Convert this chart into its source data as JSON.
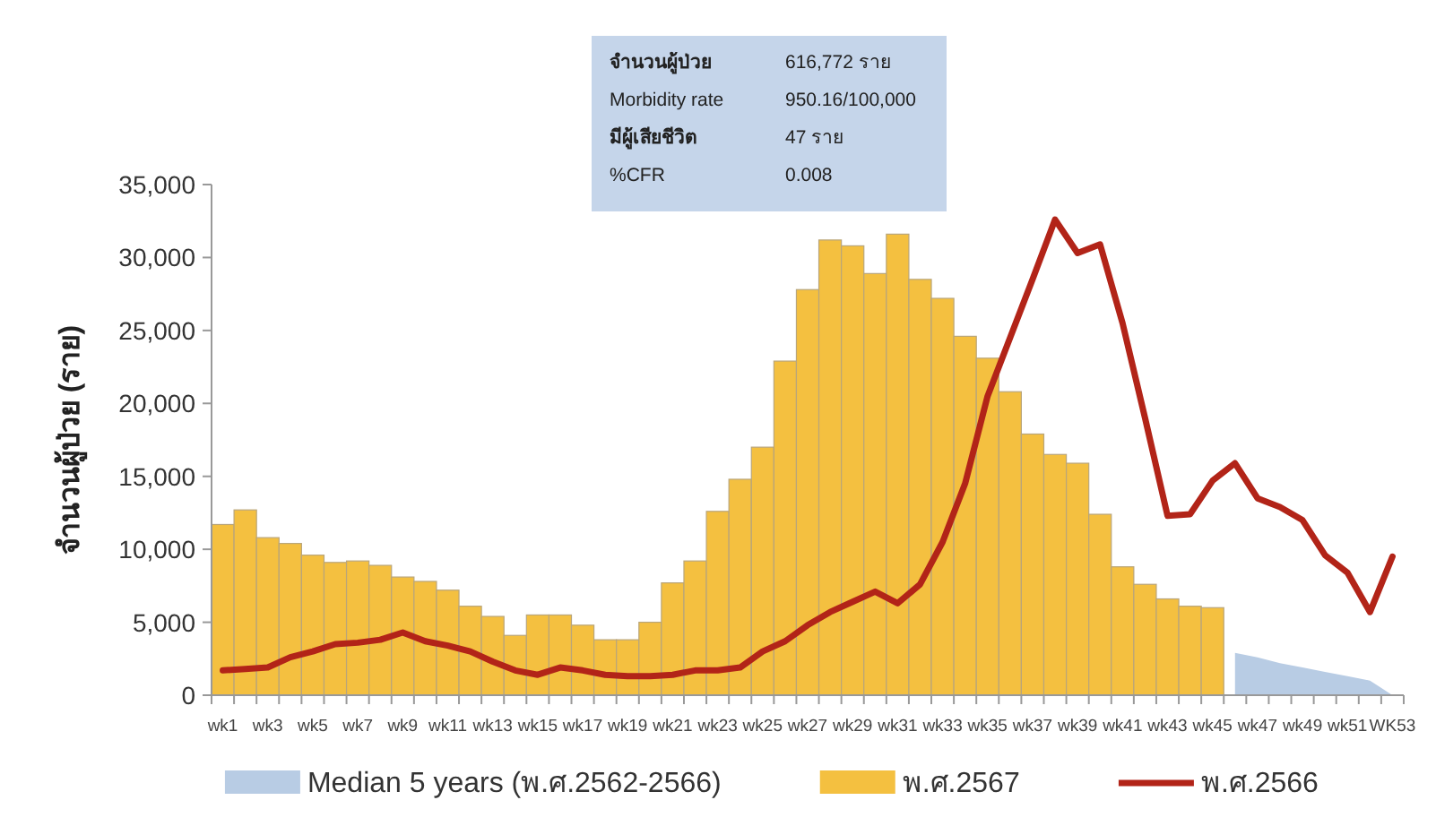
{
  "chart_data": {
    "type": "bar",
    "ylabel": "จำนวนผู้ป่วย (ราย)",
    "categories": [
      "wk1",
      null,
      "wk3",
      null,
      "wk5",
      null,
      "wk7",
      null,
      "wk9",
      null,
      "wk11",
      null,
      "wk13",
      null,
      "wk15",
      null,
      "wk17",
      null,
      "wk19",
      null,
      "wk21",
      null,
      "wk23",
      null,
      "wk25",
      null,
      "wk27",
      null,
      "wk29",
      null,
      "wk31",
      null,
      "wk33",
      null,
      "wk35",
      null,
      "wk37",
      null,
      "wk39",
      null,
      "wk41",
      null,
      "wk43",
      null,
      "wk45",
      null,
      "wk47",
      null,
      "wk49",
      null,
      "wk51",
      null,
      "WK53"
    ],
    "series": [
      {
        "name": "Median 5 years (พ.ศ.2562-2566)",
        "type": "area",
        "color": "#b8cce4",
        "values": [
          null,
          null,
          null,
          null,
          null,
          null,
          null,
          null,
          null,
          null,
          null,
          null,
          null,
          null,
          null,
          null,
          null,
          null,
          null,
          null,
          null,
          null,
          null,
          null,
          null,
          null,
          null,
          null,
          null,
          null,
          null,
          null,
          null,
          null,
          null,
          null,
          null,
          null,
          null,
          null,
          null,
          null,
          null,
          null,
          null,
          2900,
          2600,
          2200,
          1900,
          1600,
          1300,
          1000,
          0
        ]
      },
      {
        "name": "พ.ศ.2567",
        "color": "#f4c040",
        "values": [
          11700,
          12700,
          10800,
          10400,
          9600,
          9100,
          9200,
          8900,
          8100,
          7800,
          7200,
          6100,
          5400,
          4100,
          5500,
          5500,
          4800,
          3800,
          3800,
          5000,
          7700,
          9200,
          12600,
          14800,
          17000,
          22900,
          27800,
          31200,
          30800,
          28900,
          31600,
          28500,
          27200,
          24600,
          23100,
          20800,
          17900,
          16500,
          15900,
          12400,
          8800,
          7600,
          6600,
          6100,
          6000,
          null,
          null,
          null,
          null,
          null,
          null,
          null,
          null
        ]
      },
      {
        "name": "พ.ศ.2566",
        "type": "line",
        "color": "#b22418",
        "values": [
          1700,
          1800,
          1900,
          2600,
          3000,
          3500,
          3600,
          3800,
          4300,
          3700,
          3400,
          3000,
          2300,
          1700,
          1400,
          1900,
          1700,
          1400,
          1300,
          1300,
          1400,
          1700,
          1700,
          1900,
          3000,
          3700,
          4800,
          5700,
          6400,
          7100,
          6300,
          7600,
          10500,
          14500,
          20500,
          24500,
          28500,
          32600,
          30300,
          30900,
          25500,
          19000,
          12300,
          12400,
          14700,
          15900,
          13500,
          12900,
          12000,
          9600,
          8400,
          5700,
          9500
        ]
      }
    ],
    "ylim": [
      0,
      35000
    ],
    "yticks": [
      {
        "value": 0,
        "label": "0"
      },
      {
        "value": 5000,
        "label": "5,000"
      },
      {
        "value": 10000,
        "label": "10,000"
      },
      {
        "value": 15000,
        "label": "15,000"
      },
      {
        "value": 20000,
        "label": "20,000"
      },
      {
        "value": 25000,
        "label": "25,000"
      },
      {
        "value": 30000,
        "label": "30,000"
      },
      {
        "value": 35000,
        "label": "35,000"
      }
    ],
    "annotations": [
      "จำนวนผู้ป่วย",
      "616,772 ราย",
      "Morbidity rate",
      "950.16/100,000",
      "มีผู้เสียชีวิต",
      "47 ราย",
      "%CFR",
      "0.008"
    ],
    "legend": "bottom",
    "grid": false
  }
}
